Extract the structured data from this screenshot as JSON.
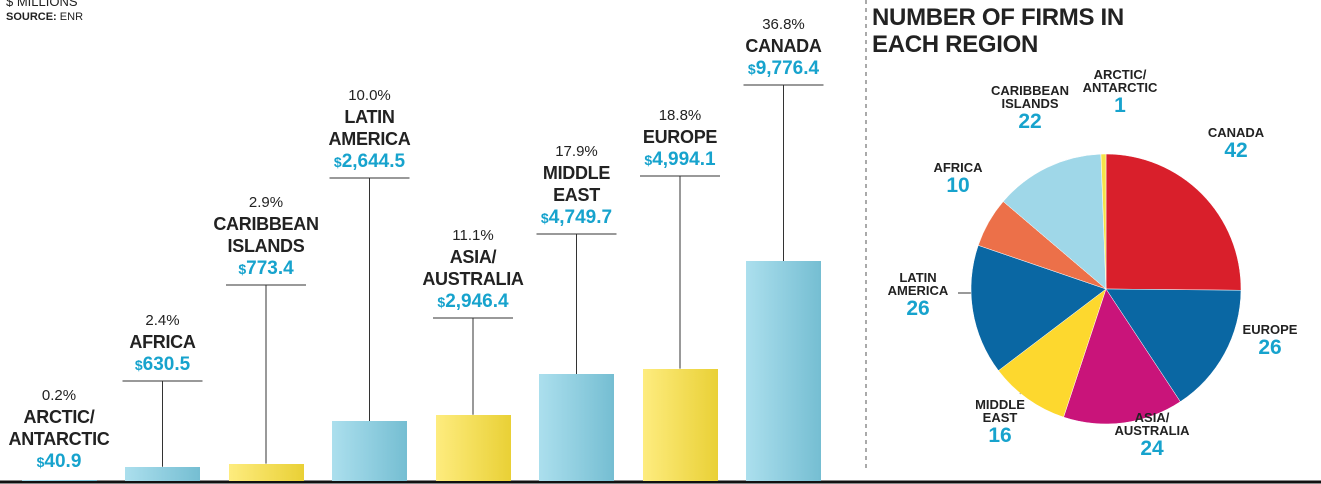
{
  "chart_data": [
    {
      "type": "bar",
      "subtitle": "$ MILLIONS",
      "source_label": "SOURCE:",
      "source": "ENR",
      "categories": [
        "ARCTIC/\nANTARCTIC",
        "AFRICA",
        "CARIBBEAN\nISLANDS",
        "LATIN\nAMERICA",
        "ASIA/\nAUSTRALIA",
        "MIDDLE\nEAST",
        "EUROPE",
        "CANADA"
      ],
      "values": [
        40.9,
        630.5,
        773.4,
        2644.5,
        2946.4,
        4749.7,
        4994.1,
        9776.4
      ],
      "value_labels": [
        "$40.9",
        "$630.5",
        "$773.4",
        "$2,644.5",
        "$2,946.4",
        "$4,749.7",
        "$4,994.1",
        "$9,776.4"
      ],
      "shares": [
        0.2,
        2.4,
        2.9,
        10.0,
        11.1,
        17.9,
        18.8,
        36.8
      ],
      "share_labels": [
        "0.2%",
        "2.4%",
        "2.9%",
        "10.0%",
        "11.1%",
        "17.9%",
        "18.8%",
        "36.8%"
      ],
      "colors": [
        "#7fcee4",
        "#7fcee4",
        "#fde23a",
        "#7fcee4",
        "#fde23a",
        "#7fcee4",
        "#fde23a",
        "#7fcee4"
      ]
    },
    {
      "type": "pie",
      "title": "NUMBER OF FIRMS IN\nEACH REGION",
      "categories": [
        "CANADA",
        "EUROPE",
        "ASIA/\nAUSTRALIA",
        "MIDDLE\nEAST",
        "LATIN\nAMERICA",
        "AFRICA",
        "CARIBBEAN\nISLANDS",
        "ARCTIC/\nANTARCTIC"
      ],
      "values": [
        42,
        26,
        24,
        16,
        26,
        10,
        22,
        1
      ],
      "colors": [
        "#d91f2b",
        "#0a67a3",
        "#c9147a",
        "#fdd82e",
        "#0a67a3",
        "#ec7049",
        "#9fd7e8",
        "#f5e34a"
      ]
    }
  ]
}
